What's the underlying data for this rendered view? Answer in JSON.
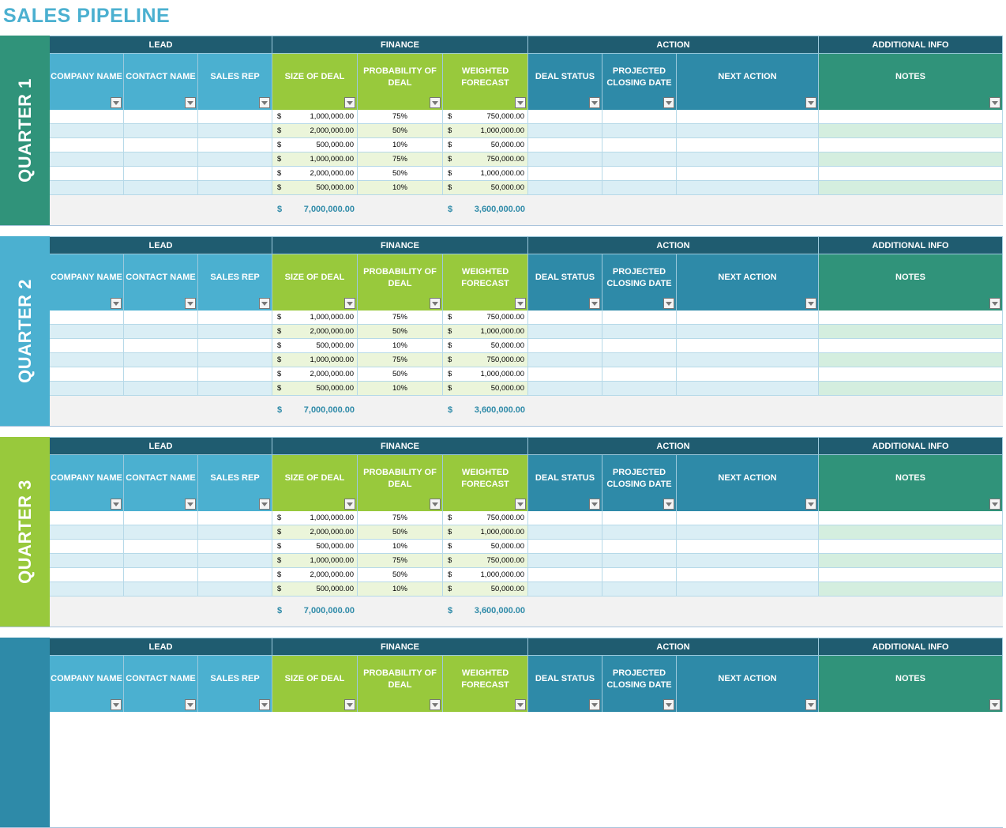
{
  "title": "SALES PIPELINE",
  "groups": [
    "LEAD",
    "FINANCE",
    "ACTION",
    "ADDITIONAL INFO"
  ],
  "columns": [
    "COMPANY NAME",
    "CONTACT NAME",
    "SALES REP",
    "SIZE OF DEAL",
    "PROBABILITY OF DEAL",
    "WEIGHTED FORECAST",
    "DEAL STATUS",
    "PROJECTED CLOSING DATE",
    "NEXT ACTION",
    "NOTES"
  ],
  "colors": {
    "group_header": "#1f5c70",
    "lead_header": "#4bb0d0",
    "finance_header": "#98c93c",
    "action_header": "#2e8aa8",
    "notes_header": "#30937a",
    "row_alt_lead": "#daeef5",
    "row_alt_finance": "#ebf5da",
    "row_alt_notes": "#d4eedf"
  },
  "rows": [
    {
      "size": "1,000,000.00",
      "prob": "75%",
      "weighted": "750,000.00"
    },
    {
      "size": "2,000,000.00",
      "prob": "50%",
      "weighted": "1,000,000.00"
    },
    {
      "size": "500,000.00",
      "prob": "10%",
      "weighted": "50,000.00"
    },
    {
      "size": "1,000,000.00",
      "prob": "75%",
      "weighted": "750,000.00"
    },
    {
      "size": "2,000,000.00",
      "prob": "50%",
      "weighted": "1,000,000.00"
    },
    {
      "size": "500,000.00",
      "prob": "10%",
      "weighted": "50,000.00"
    }
  ],
  "currency": "$",
  "totals": {
    "size": "7,000,000.00",
    "weighted": "3,600,000.00"
  },
  "quarters": [
    {
      "label": "QUARTER 1",
      "color": "#30937a",
      "full": true
    },
    {
      "label": "QUARTER 2",
      "color": "#4bb0d0",
      "full": true
    },
    {
      "label": "QUARTER 3",
      "color": "#98c93c",
      "full": true
    },
    {
      "color": "#2e8aa8",
      "full": false
    }
  ]
}
